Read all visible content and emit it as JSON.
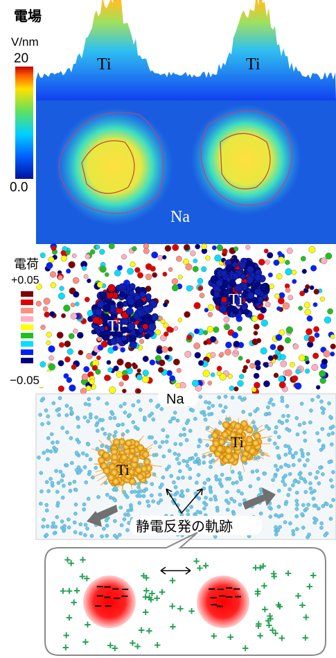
{
  "field_panel": {
    "title": "電場",
    "unit": "V/nm",
    "max_label": "20",
    "min_label": "0.0",
    "labels": [
      "Ti",
      "Ti",
      "Na"
    ]
  },
  "charge_panel": {
    "title": "電荷",
    "max_label": "+0.05",
    "min_label": "−0.05",
    "labels": [
      "Ti",
      "Ti"
    ]
  },
  "trajectory_panel": {
    "labels": [
      "Na",
      "Ti",
      "Ti"
    ],
    "caption": "静電反発の軌跡"
  },
  "schematic": {
    "plus": "+",
    "minus": "−"
  }
}
